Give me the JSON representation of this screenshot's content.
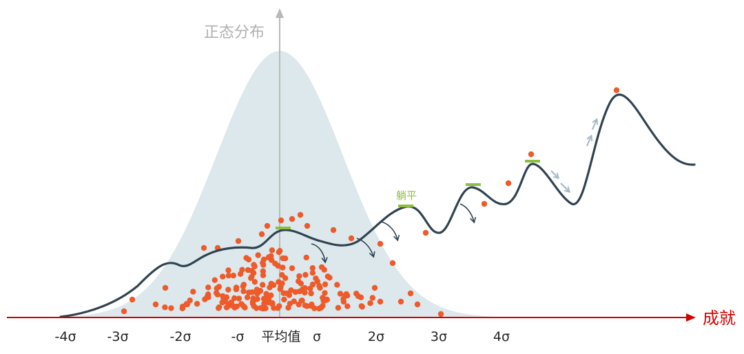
{
  "y_axis_label": "正态分布",
  "x_axis_label": "成就",
  "ticks": [
    "-4σ",
    "-3σ",
    "-2σ",
    "-σ",
    "平均值",
    "σ",
    "2σ",
    "3σ",
    "4σ"
  ],
  "annotation": "躺平",
  "colors": {
    "bell_fill": "#dce8ec",
    "curve": "#2f4350",
    "dots": "#ee5a2a",
    "axis": "#d40000",
    "flat_marker": "#8cbf3f",
    "arrows_up": "#9fb6c4"
  }
}
